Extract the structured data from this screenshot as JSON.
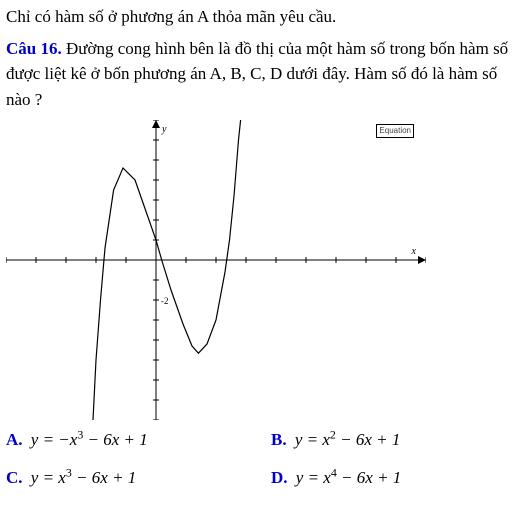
{
  "intro_text": "Chỉ có hàm số ở phương án A thỏa mãn yêu cầu.",
  "question": {
    "label": "Câu 16.",
    "text": "Đường cong hình bên là đồ thị của một hàm số trong bốn hàm số được liệt kê ở bốn phương án A, B, C, D dưới đây. Hàm số đó là hàm số nào ?"
  },
  "graph": {
    "type": "line",
    "xlim": [
      -5,
      9
    ],
    "ylim": [
      -8,
      7
    ],
    "axis_color": "#000000",
    "curve_color": "#000000",
    "background_color": "#ffffff",
    "tick_step": 1,
    "tick_length": 3,
    "line_width": 1.2,
    "x_label": "x",
    "y_label": "y",
    "label_fontsize": 10,
    "curve_points": [
      [
        -2.1,
        -8.0
      ],
      [
        -2.0,
        -5.0
      ],
      [
        -1.85,
        -2.0
      ],
      [
        -1.7,
        0.6
      ],
      [
        -1.414,
        3.5
      ],
      [
        -1.1,
        4.6
      ],
      [
        -0.7,
        4.0
      ],
      [
        -0.35,
        2.5
      ],
      [
        0.0,
        1.0
      ],
      [
        0.19,
        0.0
      ],
      [
        0.5,
        -1.5
      ],
      [
        0.9,
        -3.2
      ],
      [
        1.2,
        -4.3
      ],
      [
        1.414,
        -4.66
      ],
      [
        1.7,
        -4.2
      ],
      [
        2.0,
        -3.0
      ],
      [
        2.3,
        -0.6
      ],
      [
        2.449,
        1.0
      ],
      [
        2.6,
        3.2
      ],
      [
        2.75,
        6.0
      ],
      [
        2.82,
        7.0
      ]
    ],
    "editor_label": "Equation"
  },
  "options": {
    "A": {
      "letter": "A.",
      "prefix": "y = −x",
      "exp": "3",
      "suffix": " − 6x + 1"
    },
    "B": {
      "letter": "B.",
      "prefix": "y = x",
      "exp": "2",
      "suffix": " − 6x + 1"
    },
    "C": {
      "letter": "C.",
      "prefix": "y = x",
      "exp": "3",
      "suffix": " − 6x + 1"
    },
    "D": {
      "letter": "D.",
      "prefix": "y = x",
      "exp": "4",
      "suffix": " − 6x + 1"
    }
  }
}
